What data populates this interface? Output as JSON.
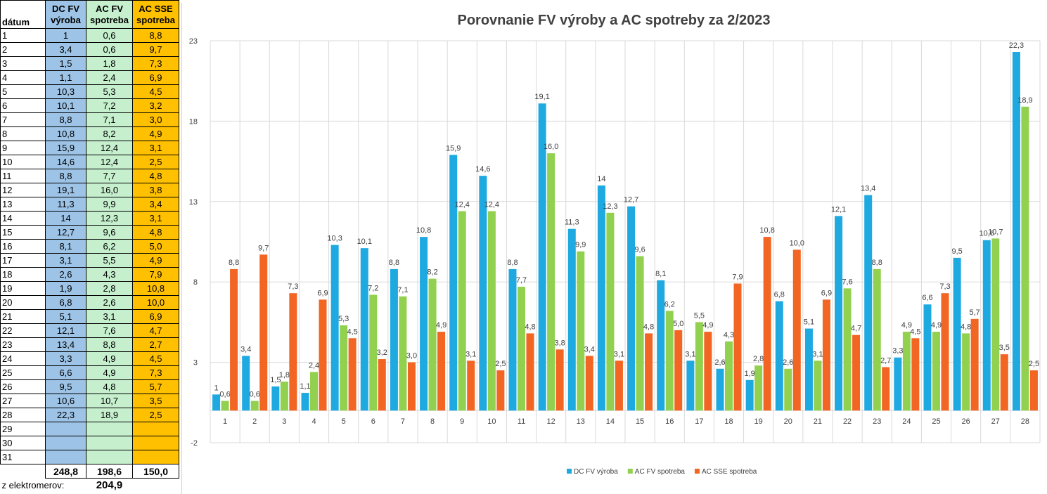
{
  "sheet": {
    "headers": [
      "dátum",
      "DC FV výroba",
      "AC FV spotreba",
      "AC SSE spotreba"
    ],
    "rows": [
      [
        "1",
        "1",
        "0,6",
        "8,8"
      ],
      [
        "2",
        "3,4",
        "0,6",
        "9,7"
      ],
      [
        "3",
        "1,5",
        "1,8",
        "7,3"
      ],
      [
        "4",
        "1,1",
        "2,4",
        "6,9"
      ],
      [
        "5",
        "10,3",
        "5,3",
        "4,5"
      ],
      [
        "6",
        "10,1",
        "7,2",
        "3,2"
      ],
      [
        "7",
        "8,8",
        "7,1",
        "3,0"
      ],
      [
        "8",
        "10,8",
        "8,2",
        "4,9"
      ],
      [
        "9",
        "15,9",
        "12,4",
        "3,1"
      ],
      [
        "10",
        "14,6",
        "12,4",
        "2,5"
      ],
      [
        "11",
        "8,8",
        "7,7",
        "4,8"
      ],
      [
        "12",
        "19,1",
        "16,0",
        "3,8"
      ],
      [
        "13",
        "11,3",
        "9,9",
        "3,4"
      ],
      [
        "14",
        "14",
        "12,3",
        "3,1"
      ],
      [
        "15",
        "12,7",
        "9,6",
        "4,8"
      ],
      [
        "16",
        "8,1",
        "6,2",
        "5,0"
      ],
      [
        "17",
        "3,1",
        "5,5",
        "4,9"
      ],
      [
        "18",
        "2,6",
        "4,3",
        "7,9"
      ],
      [
        "19",
        "1,9",
        "2,8",
        "10,8"
      ],
      [
        "20",
        "6,8",
        "2,6",
        "10,0"
      ],
      [
        "21",
        "5,1",
        "3,1",
        "6,9"
      ],
      [
        "22",
        "12,1",
        "7,6",
        "4,7"
      ],
      [
        "23",
        "13,4",
        "8,8",
        "2,7"
      ],
      [
        "24",
        "3,3",
        "4,9",
        "4,5"
      ],
      [
        "25",
        "6,6",
        "4,9",
        "7,3"
      ],
      [
        "26",
        "9,5",
        "4,8",
        "5,7"
      ],
      [
        "27",
        "10,6",
        "10,7",
        "3,5"
      ],
      [
        "28",
        "22,3",
        "18,9",
        "2,5"
      ],
      [
        "29",
        "",
        "",
        ""
      ],
      [
        "30",
        "",
        "",
        ""
      ],
      [
        "31",
        "",
        "",
        ""
      ]
    ],
    "totals": [
      "",
      "248,8",
      "198,6",
      "150,0"
    ],
    "meter_label": "z elektromerov:",
    "meter_value": "204,9"
  },
  "colors": {
    "dc": "#1fa9e1",
    "ac": "#92d050",
    "sse": "#f26522"
  },
  "chart_data": {
    "type": "bar",
    "title": "Porovnanie FV výroby a AC spotreby za 2/2023",
    "xlabel": "",
    "ylabel": "",
    "ylim": [
      -2,
      23
    ],
    "yticks": [
      -2,
      3,
      8,
      13,
      18,
      23
    ],
    "categories": [
      "1",
      "2",
      "3",
      "4",
      "5",
      "6",
      "7",
      "8",
      "9",
      "10",
      "11",
      "12",
      "13",
      "14",
      "15",
      "16",
      "17",
      "18",
      "19",
      "20",
      "21",
      "22",
      "23",
      "24",
      "25",
      "26",
      "27",
      "28"
    ],
    "series": [
      {
        "name": "DC FV výroba",
        "values": [
          1,
          3.4,
          1.5,
          1.1,
          10.3,
          10.1,
          8.8,
          10.8,
          15.9,
          14.6,
          8.8,
          19.1,
          11.3,
          14,
          12.7,
          8.1,
          3.1,
          2.6,
          1.9,
          6.8,
          5.1,
          12.1,
          13.4,
          3.3,
          6.6,
          9.5,
          10.6,
          22.3
        ],
        "labels": [
          "1",
          "3,4",
          "1,5",
          "1,1",
          "10,3",
          "10,1",
          "8,8",
          "10,8",
          "15,9",
          "14,6",
          "8,8",
          "19,1",
          "11,3",
          "14",
          "12,7",
          "8,1",
          "3,1",
          "2,6",
          "1,9",
          "6,8",
          "5,1",
          "12,1",
          "13,4",
          "3,3",
          "6,6",
          "9,5",
          "10,6",
          "22,3"
        ]
      },
      {
        "name": "AC FV spotreba",
        "values": [
          0.6,
          0.6,
          1.8,
          2.4,
          5.3,
          7.2,
          7.1,
          8.2,
          12.4,
          12.4,
          7.7,
          16.0,
          9.9,
          12.3,
          9.6,
          6.2,
          5.5,
          4.3,
          2.8,
          2.6,
          3.1,
          7.6,
          8.8,
          4.9,
          4.9,
          4.8,
          10.7,
          18.9
        ],
        "labels": [
          "0,6",
          "0,6",
          "1,8",
          "2,4",
          "5,3",
          "7,2",
          "7,1",
          "8,2",
          "12,4",
          "12,4",
          "7,7",
          "16,0",
          "9,9",
          "12,3",
          "9,6",
          "6,2",
          "5,5",
          "4,3",
          "2,8",
          "2,6",
          "3,1",
          "7,6",
          "8,8",
          "4,9",
          "4,9",
          "4,8",
          "10,7",
          "18,9"
        ]
      },
      {
        "name": "AC SSE spotreba",
        "values": [
          8.8,
          9.7,
          7.3,
          6.9,
          4.5,
          3.2,
          3.0,
          4.9,
          3.1,
          2.5,
          4.8,
          3.8,
          3.4,
          3.1,
          4.8,
          5.0,
          4.9,
          7.9,
          10.8,
          10.0,
          6.9,
          4.7,
          2.7,
          4.5,
          7.3,
          5.7,
          3.5,
          2.5
        ],
        "labels": [
          "8,8",
          "9,7",
          "7,3",
          "6,9",
          "4,5",
          "3,2",
          "3,0",
          "4,9",
          "3,1",
          "2,5",
          "4,8",
          "3,8",
          "3,4",
          "3,1",
          "4,8",
          "5,0",
          "4,9",
          "7,9",
          "10,8",
          "10,0",
          "6,9",
          "4,7",
          "2,7",
          "4,5",
          "7,3",
          "5,7",
          "3,5",
          "2,5"
        ]
      }
    ],
    "legend": "bottom-center"
  }
}
